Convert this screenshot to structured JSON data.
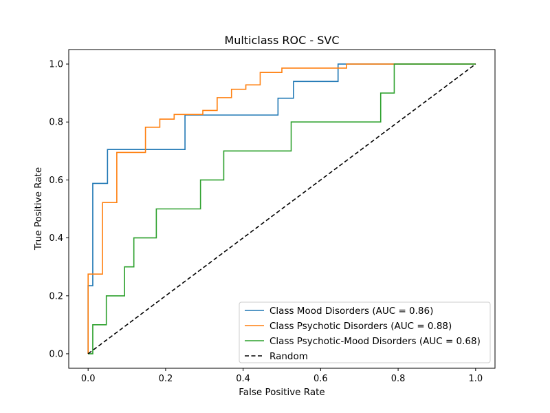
{
  "chart_data": {
    "type": "line",
    "title": "Multiclass ROC - SVC",
    "xlabel": "False Positive Rate",
    "ylabel": "True Positive Rate",
    "xlim": [
      -0.05,
      1.05
    ],
    "ylim": [
      -0.05,
      1.05
    ],
    "xticks": [
      "0.0",
      "0.2",
      "0.4",
      "0.6",
      "0.8",
      "1.0"
    ],
    "yticks": [
      "0.0",
      "0.2",
      "0.4",
      "0.6",
      "0.8",
      "1.0"
    ],
    "grid": false,
    "legend_position": "lower-right",
    "series": [
      {
        "name": "Class Mood Disorders (AUC = 0.86)",
        "color": "#1f77b4",
        "style": "step",
        "x": [
          0,
          0,
          0.012,
          0.012,
          0.05,
          0.05,
          0.25,
          0.25,
          0.49,
          0.49,
          0.53,
          0.53,
          0.645,
          0.645,
          1.0
        ],
        "y": [
          0,
          0.235,
          0.235,
          0.588,
          0.588,
          0.705,
          0.705,
          0.824,
          0.824,
          0.882,
          0.882,
          0.94,
          0.94,
          1.0,
          1.0
        ]
      },
      {
        "name": "Class Psychotic Disorders (AUC = 0.88)",
        "color": "#ff7f0e",
        "style": "step",
        "x": [
          0,
          0,
          0.037,
          0.037,
          0.074,
          0.074,
          0.148,
          0.148,
          0.185,
          0.185,
          0.222,
          0.222,
          0.296,
          0.296,
          0.333,
          0.333,
          0.37,
          0.37,
          0.407,
          0.407,
          0.444,
          0.444,
          0.5,
          0.5,
          0.667,
          0.667,
          0.79,
          1.0
        ],
        "y": [
          0,
          0.275,
          0.275,
          0.522,
          0.522,
          0.695,
          0.695,
          0.782,
          0.782,
          0.81,
          0.81,
          0.826,
          0.826,
          0.84,
          0.84,
          0.884,
          0.884,
          0.913,
          0.913,
          0.928,
          0.928,
          0.971,
          0.971,
          0.986,
          0.986,
          1.0,
          1.0,
          1.0
        ]
      },
      {
        "name": "Class Psychotic-Mood Disorders (AUC = 0.68)",
        "color": "#2ca02c",
        "style": "step",
        "x": [
          0,
          0.012,
          0.012,
          0.047,
          0.047,
          0.094,
          0.094,
          0.118,
          0.118,
          0.176,
          0.176,
          0.29,
          0.29,
          0.35,
          0.35,
          0.524,
          0.524,
          0.755,
          0.755,
          0.79,
          0.79,
          1.0
        ],
        "y": [
          0,
          0,
          0.1,
          0.1,
          0.2,
          0.2,
          0.3,
          0.3,
          0.4,
          0.4,
          0.5,
          0.5,
          0.6,
          0.6,
          0.7,
          0.7,
          0.8,
          0.8,
          0.9,
          0.9,
          1.0,
          1.0
        ]
      },
      {
        "name": "Random",
        "color": "#000000",
        "style": "dashed",
        "x": [
          0,
          1
        ],
        "y": [
          0,
          1
        ]
      }
    ]
  }
}
